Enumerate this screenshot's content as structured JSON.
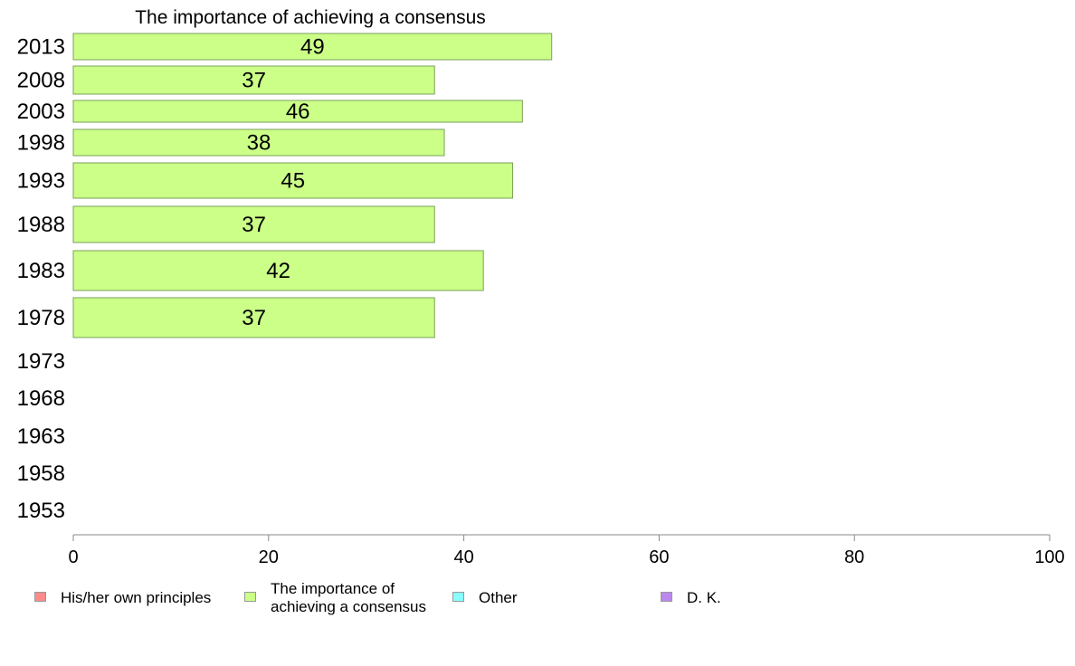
{
  "chart_data": {
    "type": "bar",
    "orientation": "horizontal",
    "title": "The importance of achieving a consensus",
    "categories": [
      "2013",
      "2008",
      "2003",
      "1998",
      "1993",
      "1988",
      "1983",
      "1978",
      "1973",
      "1968",
      "1963",
      "1958",
      "1953"
    ],
    "series": [
      {
        "name": "The importance of achieving a consensus",
        "values": [
          49,
          37,
          46,
          38,
          45,
          37,
          42,
          37,
          null,
          null,
          null,
          null,
          null
        ]
      }
    ],
    "xlim": [
      0,
      100
    ],
    "xticks": [
      "0",
      "20",
      "40",
      "60",
      "80",
      "100"
    ],
    "grid": false,
    "legend_position": "bottom",
    "legend": [
      {
        "label": "His/her own principles",
        "color": "#ff8a8a"
      },
      {
        "label": "The importance of\nachieving a consensus",
        "color": "#ccff88"
      },
      {
        "label": "Other",
        "color": "#88ffff"
      },
      {
        "label": "D. K.",
        "color": "#bb88ee"
      }
    ],
    "bar_color": "#ccff88",
    "bar_stroke": "#7aa05a"
  }
}
